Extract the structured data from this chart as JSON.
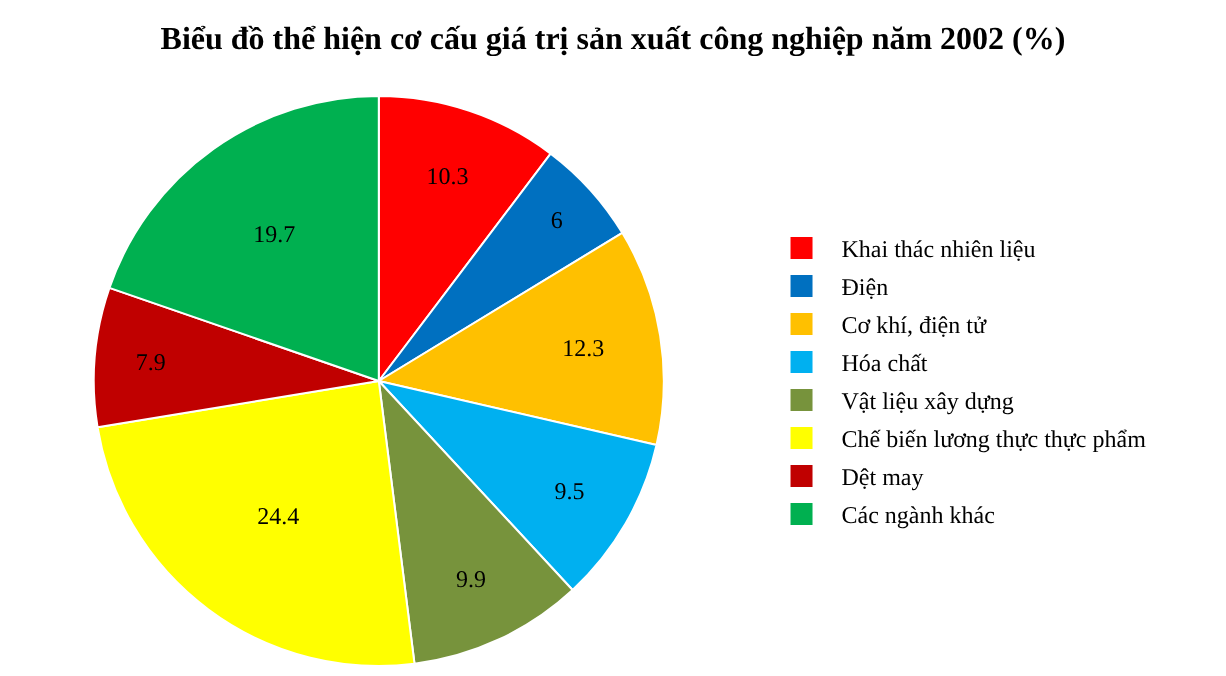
{
  "chart_data": {
    "type": "pie",
    "title": "Biểu đồ thể hiện cơ cấu giá trị sản xuất công nghiệp năm 2002 (%)",
    "categories": [
      "Khai thác nhiên liệu",
      "Điện",
      "Cơ khí, điện tử",
      "Hóa chất",
      "Vật liệu xây dựng",
      "Chế biến lương thực thực phẩm",
      "Dệt may",
      "Các ngành khác"
    ],
    "values": [
      10.3,
      6,
      12.3,
      9.5,
      9.9,
      24.4,
      7.9,
      19.7
    ],
    "colors": [
      "#ff0000",
      "#0070c0",
      "#ffc000",
      "#00b0f0",
      "#77933c",
      "#ffff00",
      "#c00000",
      "#00b050"
    ],
    "data_labels": true,
    "legend": "right"
  }
}
